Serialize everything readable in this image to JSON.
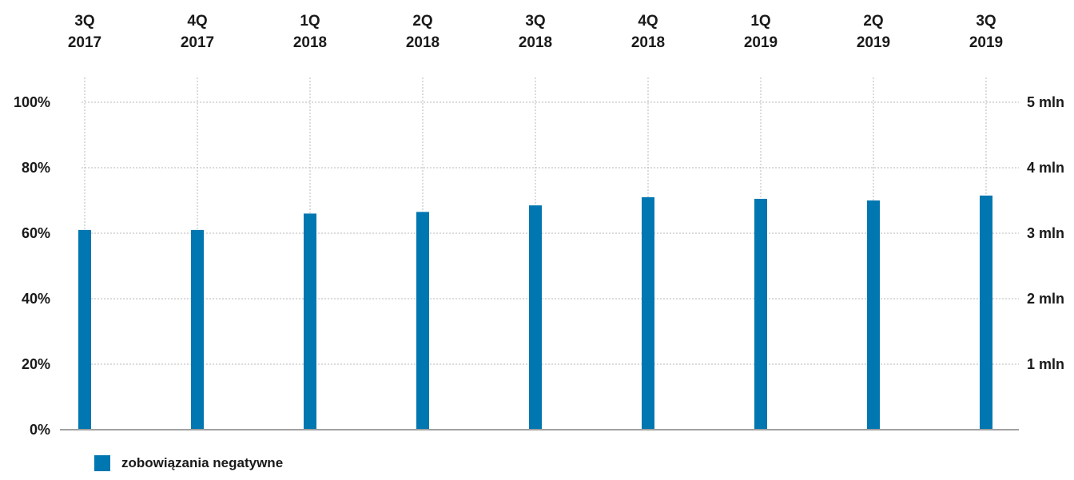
{
  "chart_data": {
    "type": "bar",
    "categories": [
      [
        "3Q",
        "2017"
      ],
      [
        "4Q",
        "2017"
      ],
      [
        "1Q",
        "2018"
      ],
      [
        "2Q",
        "2018"
      ],
      [
        "3Q",
        "2018"
      ],
      [
        "4Q",
        "2018"
      ],
      [
        "1Q",
        "2019"
      ],
      [
        "2Q",
        "2019"
      ],
      [
        "3Q",
        "2019"
      ]
    ],
    "series": [
      {
        "name": "zobowiązania negatywne",
        "color": "#0077b0",
        "values": [
          61,
          61,
          66,
          66.5,
          68.5,
          71,
          70.5,
          70,
          71.5
        ]
      }
    ],
    "y_left": {
      "ylim": [
        0,
        100
      ],
      "ticks": [
        0,
        20,
        40,
        60,
        80,
        100
      ],
      "tick_labels": [
        "0%",
        "20%",
        "40%",
        "60%",
        "80%",
        "100%"
      ]
    },
    "y_right": {
      "ylim": [
        0,
        5
      ],
      "ticks": [
        1,
        2,
        3,
        4,
        5
      ],
      "tick_labels": [
        "1 mln",
        "2 mln",
        "3 mln",
        "4 mln",
        "5 mln"
      ]
    },
    "xlabel": "",
    "ylabel": "",
    "grid": true,
    "legend_position": "bottom-left"
  },
  "legend": {
    "label": "zobowiązania negatywne",
    "color": "#0077b0"
  }
}
